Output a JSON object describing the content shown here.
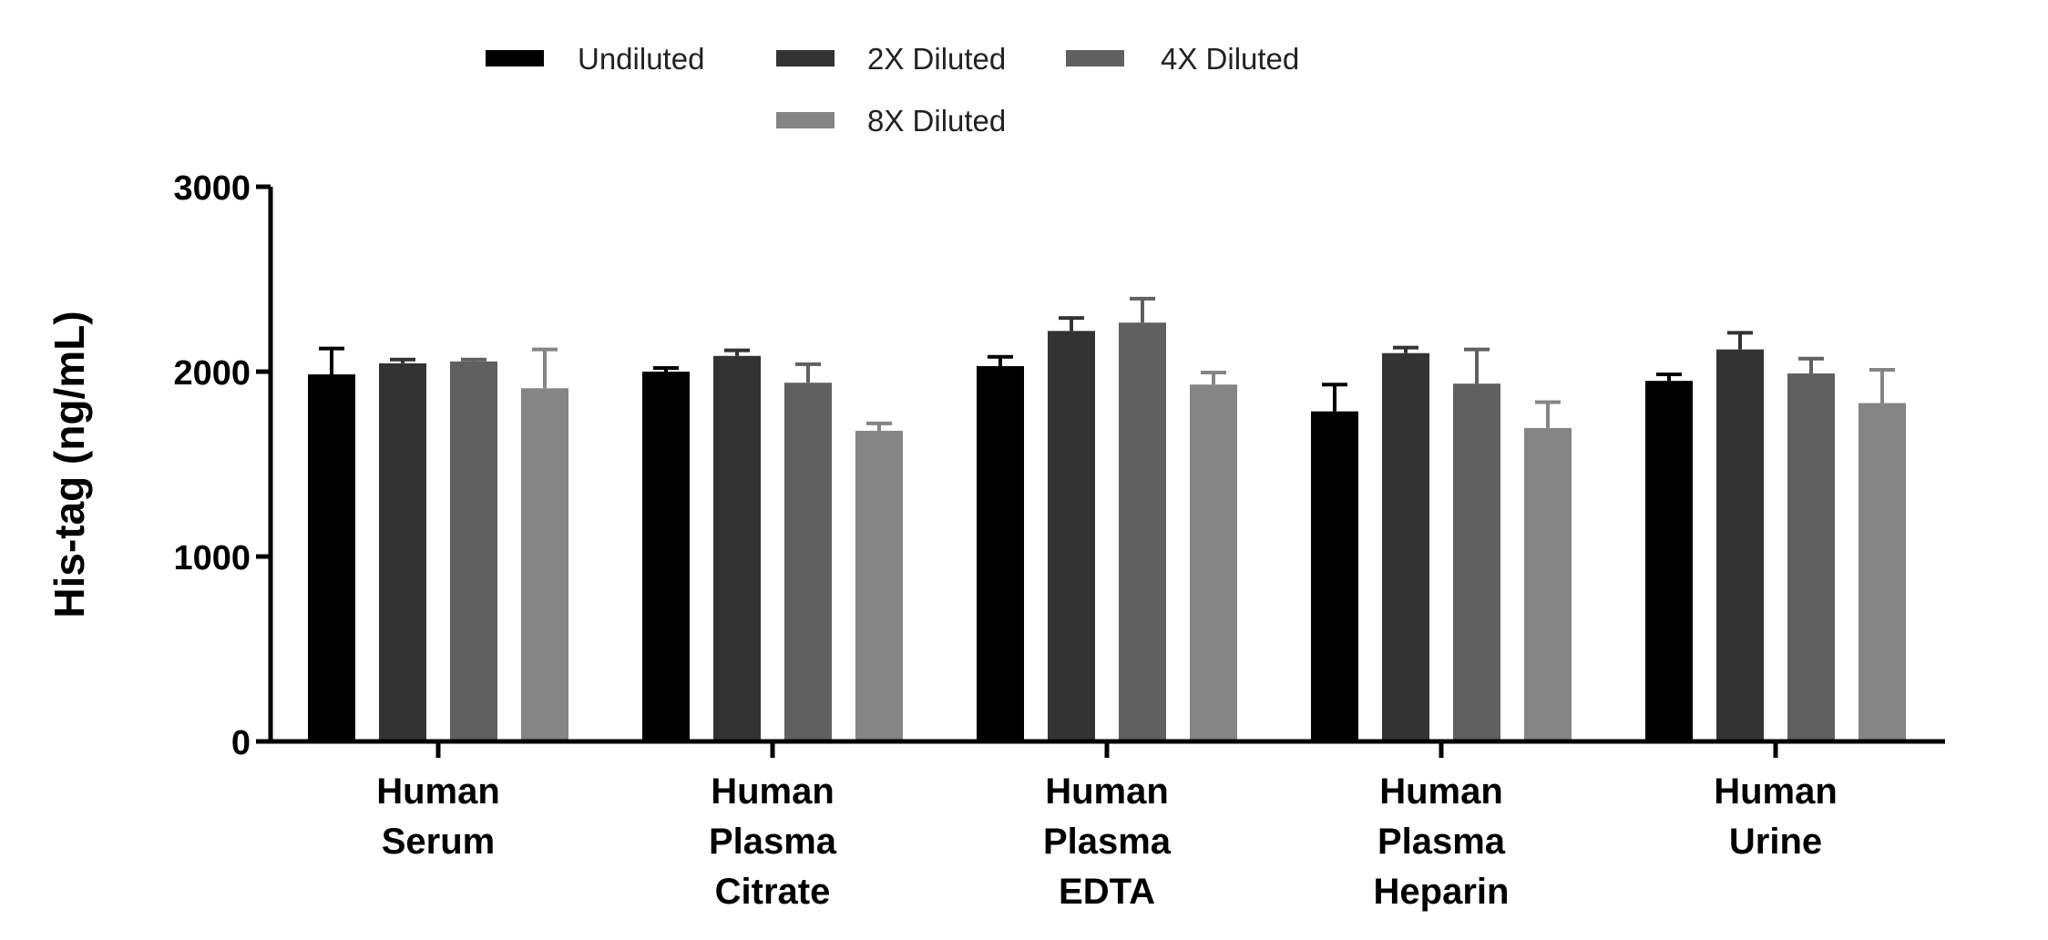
{
  "chart_data": {
    "type": "bar",
    "ylabel": "His-tag (ng/mL)",
    "xlabel": "",
    "ylim": [
      0,
      3000
    ],
    "yticks": [
      0,
      1000,
      2000,
      3000
    ],
    "categories": [
      [
        "Human",
        "Serum"
      ],
      [
        "Human",
        "Plasma",
        "Citrate"
      ],
      [
        "Human",
        "Plasma",
        "EDTA"
      ],
      [
        "Human",
        "Plasma",
        "Heparin"
      ],
      [
        "Human",
        "Urine"
      ]
    ],
    "series": [
      {
        "name": "Undiluted",
        "color": "#000000",
        "values": [
          1985,
          2000,
          2030,
          1785,
          1950
        ],
        "errors": [
          140,
          20,
          50,
          145,
          35
        ]
      },
      {
        "name": "2X Diluted",
        "color": "#333333",
        "values": [
          2045,
          2085,
          2220,
          2100,
          2120
        ],
        "errors": [
          20,
          30,
          70,
          30,
          90
        ]
      },
      {
        "name": "4X Diluted",
        "color": "#606060",
        "values": [
          2055,
          1940,
          2265,
          1935,
          1990
        ],
        "errors": [
          10,
          100,
          130,
          185,
          80
        ]
      },
      {
        "name": "8X Diluted",
        "color": "#858585",
        "values": [
          1910,
          1680,
          1930,
          1695,
          1830
        ],
        "errors": [
          210,
          40,
          65,
          140,
          180
        ]
      }
    ],
    "legend": {
      "position": "top"
    }
  }
}
